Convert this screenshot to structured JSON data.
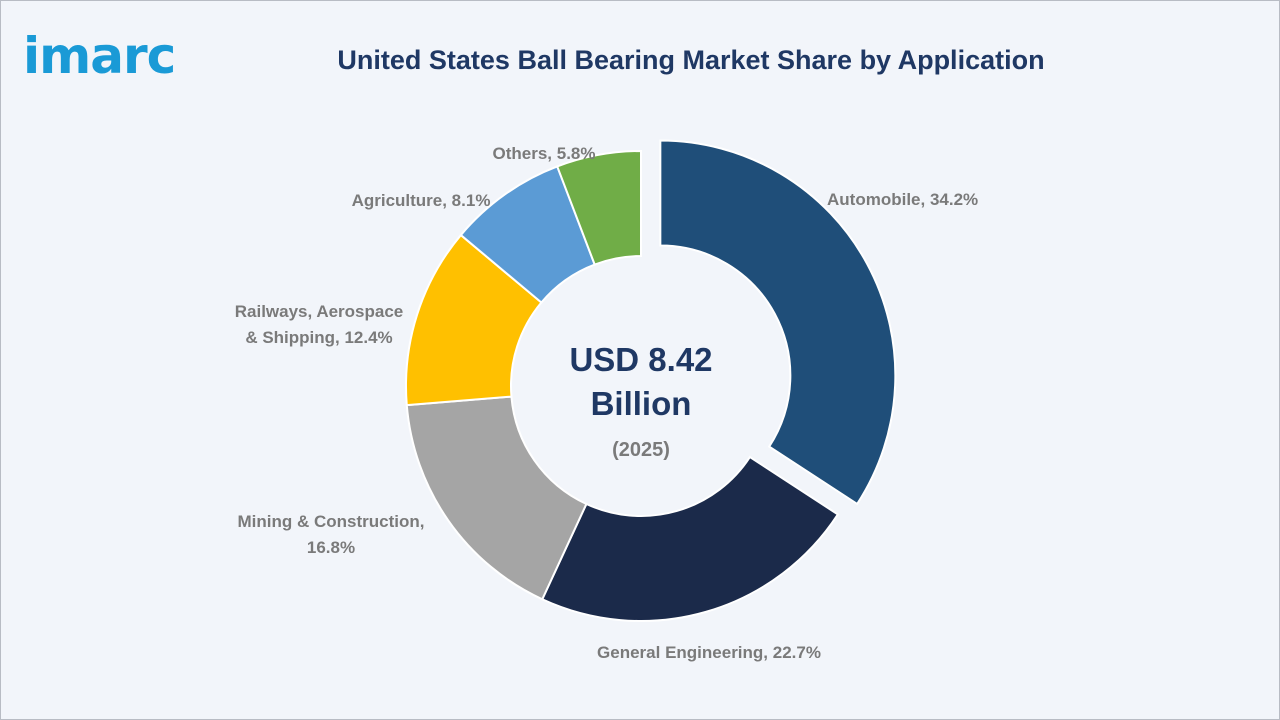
{
  "brand": {
    "logo_text": "imarc",
    "logo_color": "#1a9ad6"
  },
  "chart_data": {
    "type": "pie",
    "title": "United States Ball Bearing Market Share by Application",
    "center_value": "USD 8.42",
    "center_unit": "Billion",
    "center_year": "(2025)",
    "slices": [
      {
        "category": "Automobile",
        "value": 34.2,
        "label": "Automobile, 34.2%",
        "color": "#1f4e79",
        "exploded": true
      },
      {
        "category": "General Engineering",
        "value": 22.7,
        "label": "General Engineering, 22.7%",
        "color": "#1b2a4a",
        "exploded": false
      },
      {
        "category": "Mining & Construction",
        "value": 16.8,
        "label_lines": [
          "Mining & Construction,",
          "16.8%"
        ],
        "color": "#a5a5a5",
        "exploded": false
      },
      {
        "category": "Railways, Aerospace & Shipping",
        "value": 12.4,
        "label_lines": [
          "Railways, Aerospace",
          "& Shipping, 12.4%"
        ],
        "color": "#ffc000",
        "exploded": false
      },
      {
        "category": "Agriculture",
        "value": 8.1,
        "label": "Agriculture, 8.1%",
        "color": "#5b9bd5",
        "exploded": false
      },
      {
        "category": "Others",
        "value": 5.8,
        "label": "Others, 5.8%",
        "color": "#70ad47",
        "exploded": false
      }
    ]
  }
}
